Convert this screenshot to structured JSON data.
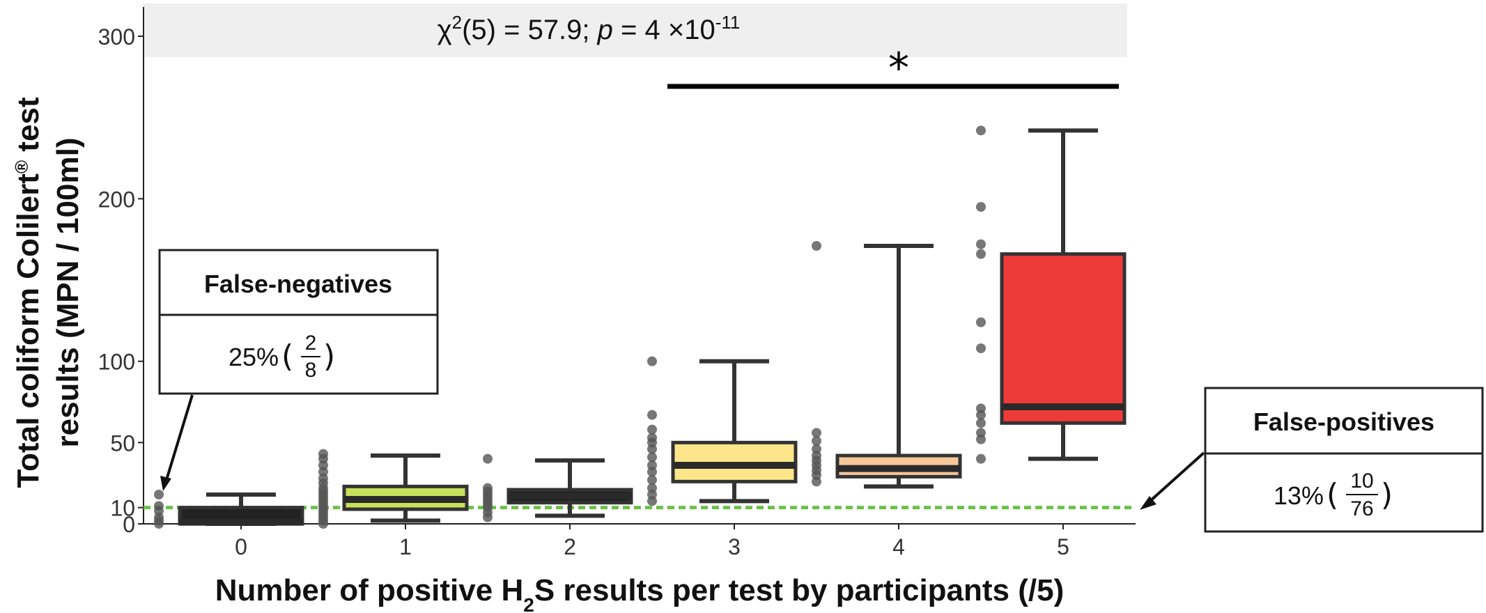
{
  "chart_data": {
    "type": "boxplot",
    "stat_label": {
      "prefix": "χ",
      "sup": "2",
      "middle": "(5) = 57.9; ",
      "p": "p",
      "eq": " = 4 ×10",
      "exp": "-11"
    },
    "significance_marker": "*",
    "significance_span": [
      3,
      5
    ],
    "ylabel_line1_main": "Total coliform Colilert",
    "ylabel_line1_sup": "®",
    "ylabel_line1_end": " test",
    "ylabel_line2": "results (MPN / 100ml)",
    "xlabel_pre": "Number of positive H",
    "xlabel_sub": "2",
    "xlabel_post": "S results per test by participants (/5)",
    "y_ticks": [
      0,
      10,
      50,
      100,
      200,
      300
    ],
    "ylim": [
      0,
      320
    ],
    "threshold_y": 10,
    "categories": [
      "0",
      "1",
      "2",
      "3",
      "4",
      "5"
    ],
    "boxes": [
      {
        "x": 0,
        "whisker_low": 0,
        "q1": 0,
        "median": 1,
        "q3": 10,
        "whisker_high": 18,
        "fill": "#222222",
        "points": [
          0,
          2,
          4,
          8,
          11,
          18
        ]
      },
      {
        "x": 1,
        "whisker_low": 2,
        "q1": 9,
        "median": 15,
        "q3": 23,
        "whisker_high": 42,
        "fill": "#c8e05a",
        "points": [
          0,
          2,
          4,
          6,
          8,
          10,
          12,
          14,
          16,
          18,
          20,
          22,
          25,
          28,
          32,
          36,
          40,
          43
        ]
      },
      {
        "x": 2,
        "whisker_low": 5,
        "q1": 13,
        "median": 17,
        "q3": 21,
        "whisker_high": 39,
        "fill": "#222222",
        "points": [
          4,
          7,
          10,
          12,
          14,
          16,
          18,
          20,
          22,
          40
        ]
      },
      {
        "x": 3,
        "whisker_low": 14,
        "q1": 26,
        "median": 36,
        "q3": 50,
        "whisker_high": 100,
        "fill": "#fde68a",
        "points": [
          14,
          18,
          22,
          27,
          32,
          36,
          41,
          46,
          50,
          53,
          58,
          67,
          100
        ]
      },
      {
        "x": 4,
        "whisker_low": 23,
        "q1": 29,
        "median": 34,
        "q3": 42,
        "whisker_high": 171,
        "fill": "#f6c89a",
        "points": [
          26,
          30,
          33,
          36,
          39,
          42,
          46,
          51,
          56,
          171
        ]
      },
      {
        "x": 5,
        "whisker_low": 40,
        "q1": 62,
        "median": 72,
        "q3": 166,
        "whisker_high": 242,
        "fill": "#ef3a3a",
        "points": [
          40,
          52,
          56,
          62,
          67,
          71,
          108,
          124,
          166,
          172,
          195,
          242
        ]
      }
    ],
    "annotations": [
      {
        "title": "False-negatives",
        "pct": "25% ",
        "num": "2",
        "den": "8"
      },
      {
        "title": "False-positives",
        "pct": "13% ",
        "num": "10",
        "den": "76"
      }
    ]
  }
}
